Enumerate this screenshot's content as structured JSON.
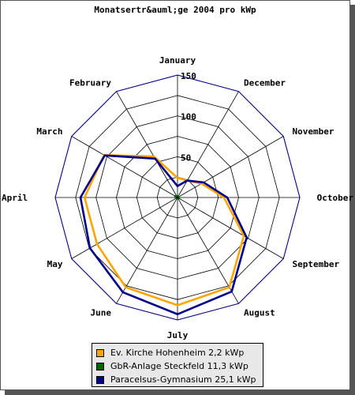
{
  "chart_data": {
    "type": "radar",
    "title": "Monatsertr&auml;ge 2004 pro kWp",
    "categories": [
      "January",
      "February",
      "March",
      "April",
      "May",
      "June",
      "July",
      "August",
      "September",
      "October",
      "November",
      "December"
    ],
    "rmax": 150,
    "rticks": [
      50,
      100,
      150
    ],
    "grid": true,
    "legend_position": "bottom",
    "series": [
      {
        "name": "Ev. Kirche Hohenheim 2,2 kWp",
        "color": "#ffa500",
        "values": [
          24,
          58,
          104,
          114,
          114,
          127,
          132,
          127,
          94,
          57,
          34,
          24
        ]
      },
      {
        "name": "GbR-Anlage Steckfeld 11,3 kWp",
        "color": "#006400",
        "values": [
          2,
          3,
          4,
          3,
          2,
          2,
          2,
          2,
          3,
          2,
          2,
          2
        ]
      },
      {
        "name": "Paracelsus-Gymnasium 25,1 kWp",
        "color": "#00008b",
        "values": [
          14,
          55,
          103,
          119,
          124,
          134,
          143,
          133,
          98,
          61,
          37,
          24
        ]
      }
    ]
  }
}
